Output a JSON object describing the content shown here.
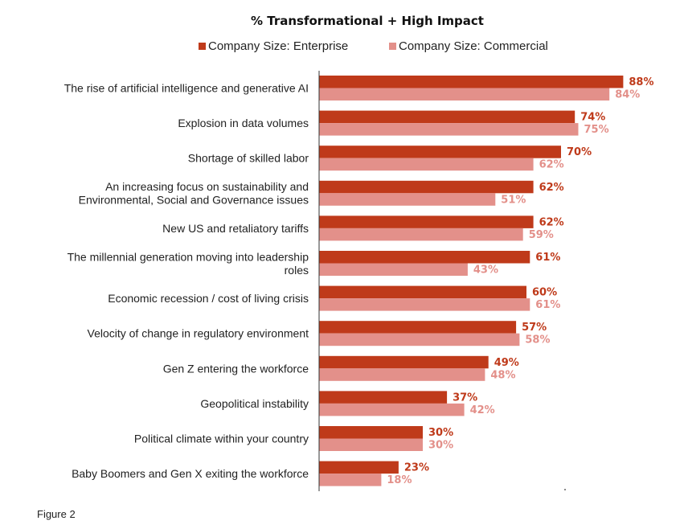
{
  "caption": "Figure 2",
  "chart_data": {
    "type": "bar",
    "orientation": "horizontal",
    "title": "% Transformational + High Impact",
    "xlim": [
      0,
      100
    ],
    "legend_position": "top",
    "colors": {
      "enterprise": "#bf3a1a",
      "commercial": "#e3908a"
    },
    "categories": [
      [
        "The rise of artificial intelligence and generative AI"
      ],
      [
        "Explosion in data volumes"
      ],
      [
        "Shortage of skilled labor"
      ],
      [
        "An increasing focus on sustainability and",
        "Environmental, Social and Governance issues"
      ],
      [
        "New US and retaliatory tariffs"
      ],
      [
        "The millennial generation moving into leadership",
        "roles"
      ],
      [
        "Economic recession / cost of living crisis"
      ],
      [
        "Velocity of change in regulatory environment"
      ],
      [
        "Gen Z entering the workforce"
      ],
      [
        "Geopolitical instability"
      ],
      [
        "Political climate within your country"
      ],
      [
        "Baby Boomers and Gen X exiting the workforce"
      ]
    ],
    "series": [
      {
        "name": "Company Size: Enterprise",
        "values": [
          88,
          74,
          70,
          62,
          62,
          61,
          60,
          57,
          49,
          37,
          30,
          23
        ]
      },
      {
        "name": "Company Size: Commercial",
        "values": [
          84,
          75,
          62,
          51,
          59,
          43,
          61,
          58,
          48,
          42,
          30,
          18
        ]
      }
    ],
    "value_suffix": "%"
  }
}
